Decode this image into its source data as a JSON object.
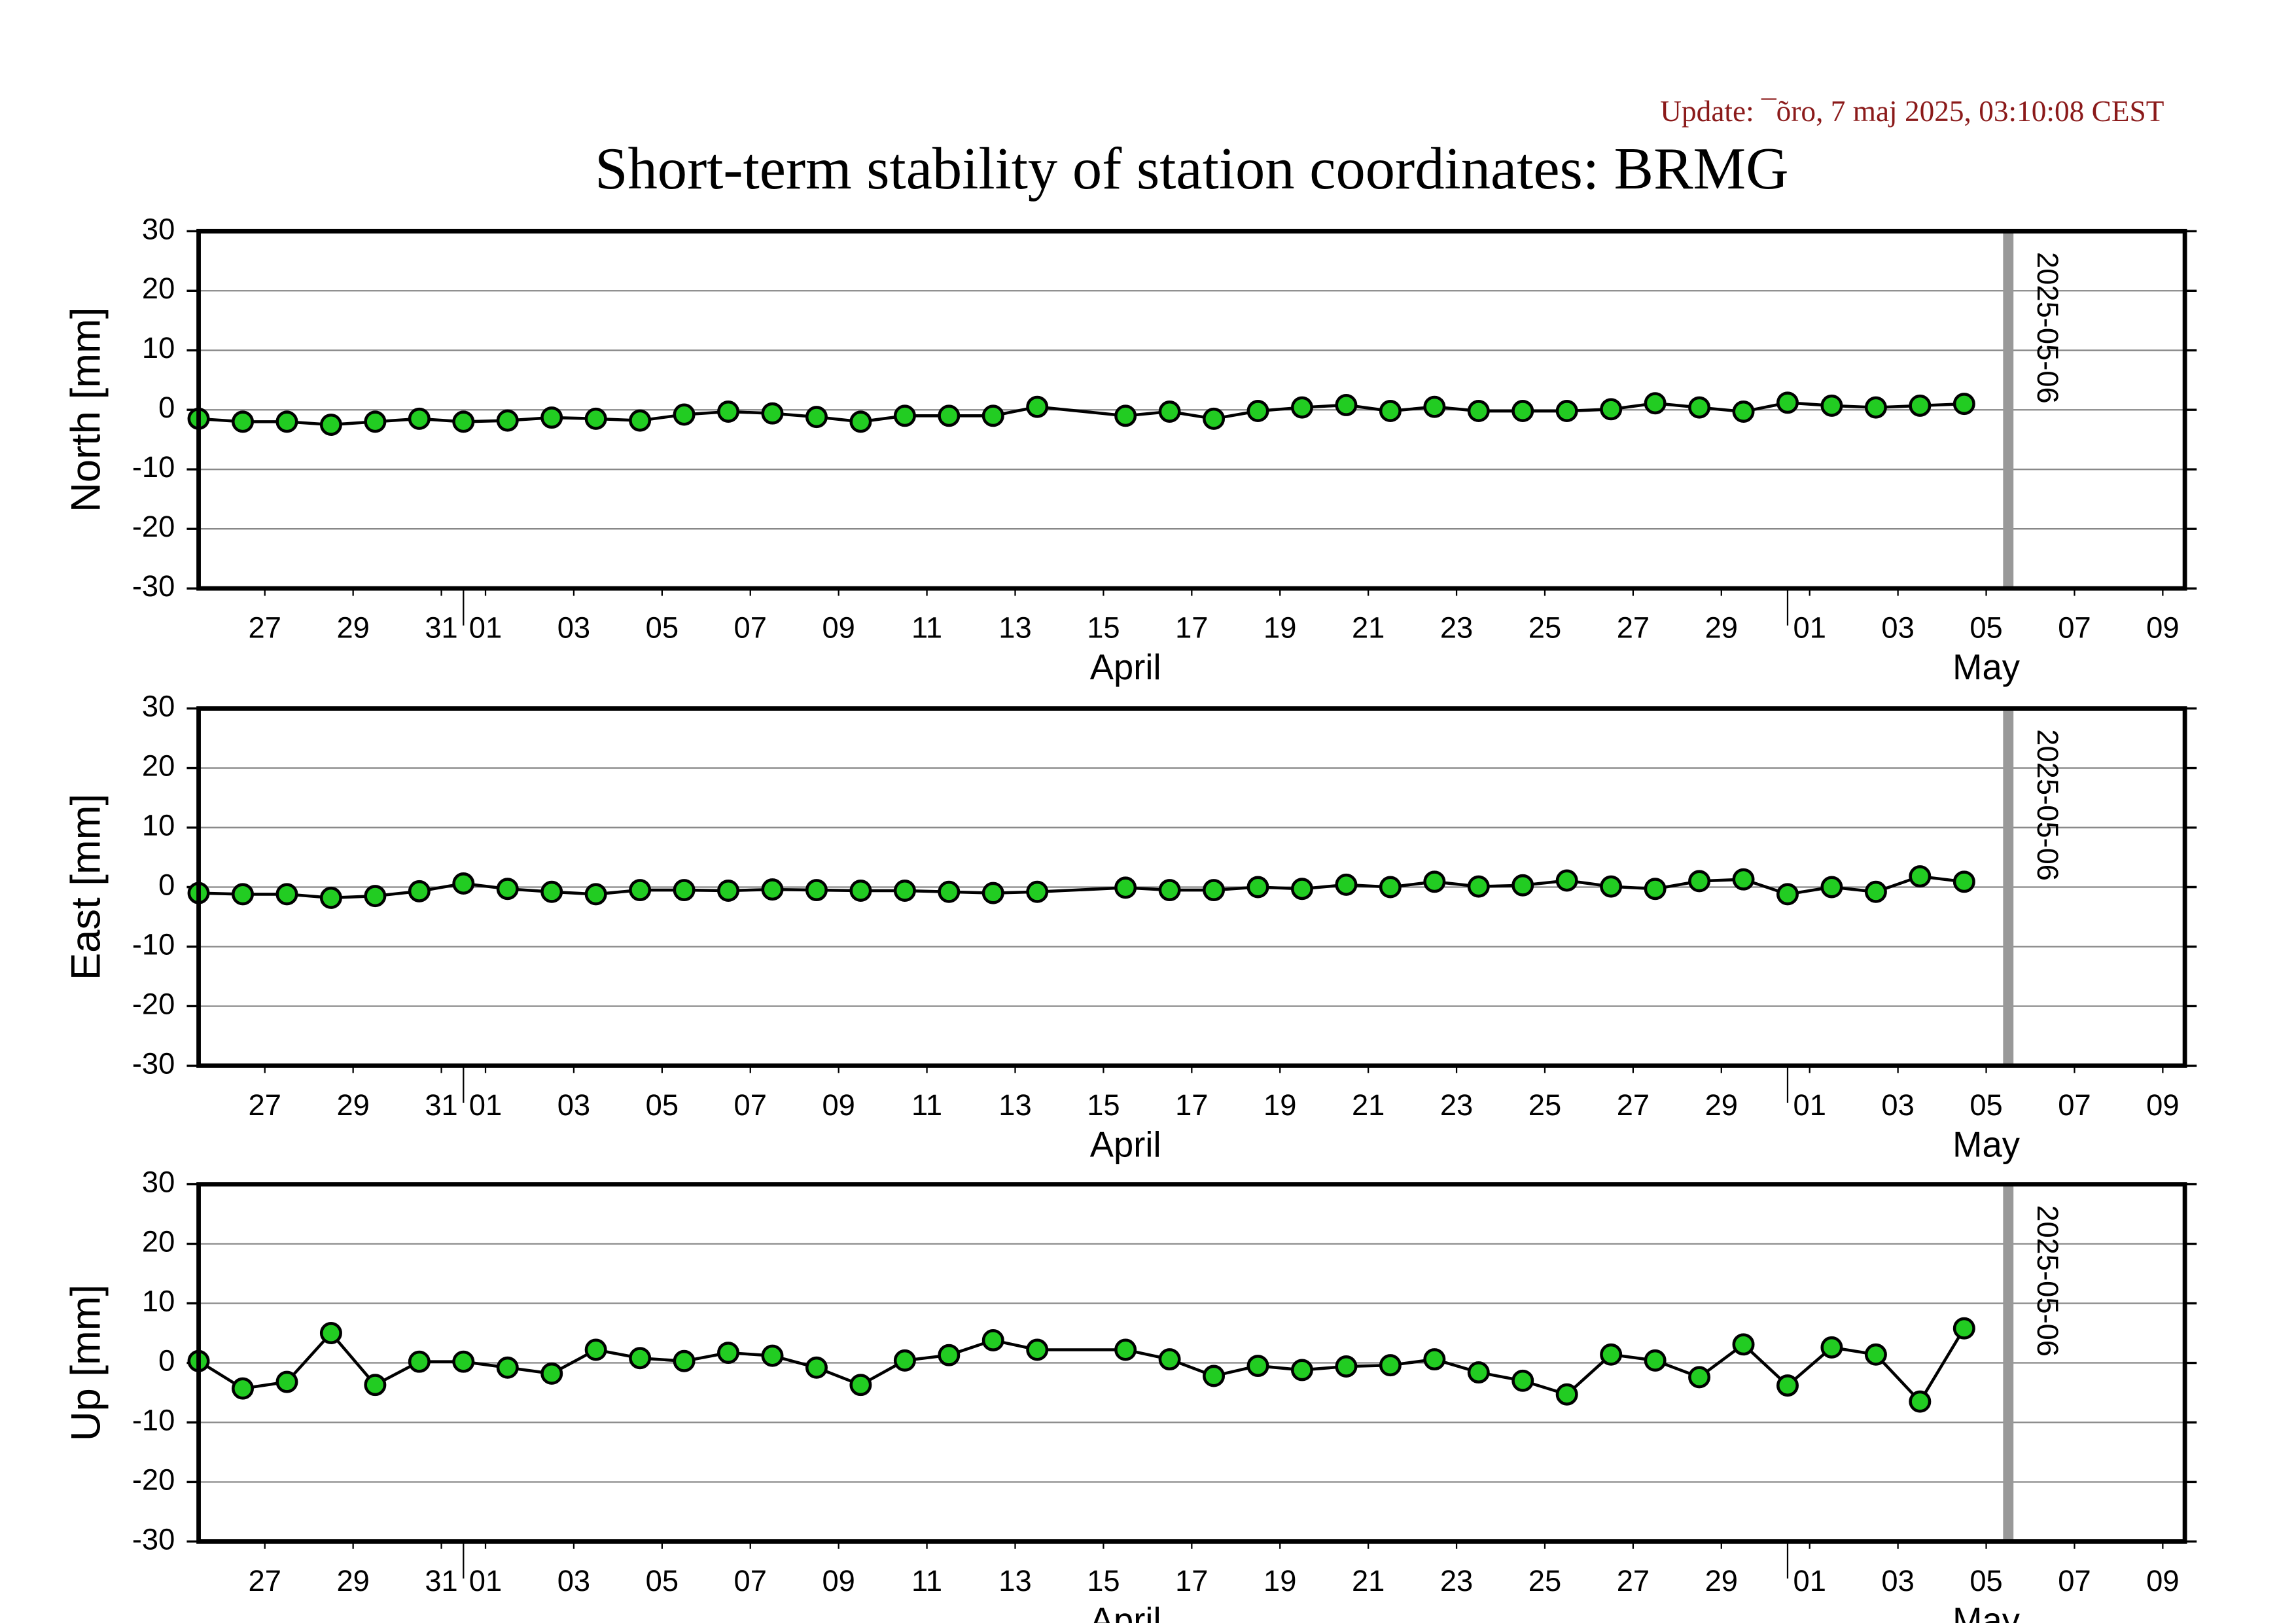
{
  "header": {
    "update": "Update: ¯õro, 7 maj 2025, 03:10:08 CEST",
    "title": "Short-term stability of station coordinates: BRMG"
  },
  "chart_data": [
    {
      "type": "line",
      "y_label": "North [mm]",
      "color": "#22cc22",
      "line_color": "#000000",
      "grid": true,
      "x": [
        "03-26",
        "03-27",
        "03-28",
        "03-29",
        "03-30",
        "03-31",
        "04-01",
        "04-02",
        "04-03",
        "04-04",
        "04-05",
        "04-06",
        "04-07",
        "04-08",
        "04-09",
        "04-10",
        "04-11",
        "04-12",
        "04-13",
        "04-14",
        "04-16",
        "04-17",
        "04-18",
        "04-19",
        "04-20",
        "04-21",
        "04-22",
        "04-23",
        "04-24",
        "04-25",
        "04-26",
        "04-27",
        "04-28",
        "04-29",
        "04-30",
        "05-01",
        "05-02",
        "05-03",
        "05-04",
        "05-05"
      ],
      "values": [
        -1.5,
        -2,
        -2,
        -2.5,
        -2,
        -1.5,
        -2,
        -1.8,
        -1.3,
        -1.5,
        -1.8,
        -0.8,
        -0.3,
        -0.6,
        -1.2,
        -2,
        -1,
        -1,
        -1,
        0.5,
        -1,
        -0.3,
        -1.5,
        -0.2,
        0.4,
        0.8,
        -0.2,
        0.5,
        -0.2,
        -0.2,
        -0.2,
        0.1,
        1.1,
        0.4,
        -0.3,
        1.2,
        0.7,
        0.4,
        0.7,
        1.0
      ],
      "xlim": [
        "03-26",
        "05-10"
      ],
      "xticks": [
        {
          "value": "03-27",
          "label": "27"
        },
        {
          "value": "03-29",
          "label": "29"
        },
        {
          "value": "03-31",
          "label": "31"
        },
        {
          "value": "04-01",
          "label": "01"
        },
        {
          "value": "04-03",
          "label": "03"
        },
        {
          "value": "04-05",
          "label": "05"
        },
        {
          "value": "04-07",
          "label": "07"
        },
        {
          "value": "04-09",
          "label": "09"
        },
        {
          "value": "04-11",
          "label": "11"
        },
        {
          "value": "04-13",
          "label": "13"
        },
        {
          "value": "04-15",
          "label": "15"
        },
        {
          "value": "04-17",
          "label": "17"
        },
        {
          "value": "04-19",
          "label": "19"
        },
        {
          "value": "04-21",
          "label": "21"
        },
        {
          "value": "04-23",
          "label": "23"
        },
        {
          "value": "04-25",
          "label": "25"
        },
        {
          "value": "04-27",
          "label": "27"
        },
        {
          "value": "04-29",
          "label": "29"
        },
        {
          "value": "05-01",
          "label": "01"
        },
        {
          "value": "05-03",
          "label": "03"
        },
        {
          "value": "05-05",
          "label": "05"
        },
        {
          "value": "05-07",
          "label": "07"
        },
        {
          "value": "05-09",
          "label": "09"
        }
      ],
      "months": [
        {
          "value": "04",
          "label": "April"
        },
        {
          "value": "05",
          "label": "May"
        }
      ],
      "marker": "2025-05-06",
      "ylim": [
        -30,
        30
      ],
      "yticks": [
        -30,
        -20,
        -10,
        0,
        10,
        20,
        30
      ]
    },
    {
      "type": "line",
      "y_label": "East [mm]",
      "color": "#22cc22",
      "line_color": "#000000",
      "grid": true,
      "x": [
        "03-26",
        "03-27",
        "03-28",
        "03-29",
        "03-30",
        "03-31",
        "04-01",
        "04-02",
        "04-03",
        "04-04",
        "04-05",
        "04-06",
        "04-07",
        "04-08",
        "04-09",
        "04-10",
        "04-11",
        "04-12",
        "04-13",
        "04-14",
        "04-16",
        "04-17",
        "04-18",
        "04-19",
        "04-20",
        "04-21",
        "04-22",
        "04-23",
        "04-24",
        "04-25",
        "04-26",
        "04-27",
        "04-28",
        "04-29",
        "04-30",
        "05-01",
        "05-02",
        "05-03",
        "05-04",
        "05-05"
      ],
      "values": [
        -1,
        -1.2,
        -1.2,
        -1.8,
        -1.5,
        -0.7,
        0.6,
        -0.3,
        -0.8,
        -1.2,
        -0.5,
        -0.5,
        -0.6,
        -0.4,
        -0.5,
        -0.6,
        -0.6,
        -0.8,
        -1,
        -0.8,
        -0.1,
        -0.5,
        -0.5,
        0,
        -0.3,
        0.4,
        0,
        0.9,
        0.1,
        0.3,
        1.1,
        0.1,
        -0.3,
        1,
        1.3,
        -1.2,
        0,
        -0.8,
        1.8,
        0.9
      ],
      "xlim": [
        "03-26",
        "05-10"
      ],
      "xticks": [
        {
          "value": "03-27",
          "label": "27"
        },
        {
          "value": "03-29",
          "label": "29"
        },
        {
          "value": "03-31",
          "label": "31"
        },
        {
          "value": "04-01",
          "label": "01"
        },
        {
          "value": "04-03",
          "label": "03"
        },
        {
          "value": "04-05",
          "label": "05"
        },
        {
          "value": "04-07",
          "label": "07"
        },
        {
          "value": "04-09",
          "label": "09"
        },
        {
          "value": "04-11",
          "label": "11"
        },
        {
          "value": "04-13",
          "label": "13"
        },
        {
          "value": "04-15",
          "label": "15"
        },
        {
          "value": "04-17",
          "label": "17"
        },
        {
          "value": "04-19",
          "label": "19"
        },
        {
          "value": "04-21",
          "label": "21"
        },
        {
          "value": "04-23",
          "label": "23"
        },
        {
          "value": "04-25",
          "label": "25"
        },
        {
          "value": "04-27",
          "label": "27"
        },
        {
          "value": "04-29",
          "label": "29"
        },
        {
          "value": "05-01",
          "label": "01"
        },
        {
          "value": "05-03",
          "label": "03"
        },
        {
          "value": "05-05",
          "label": "05"
        },
        {
          "value": "05-07",
          "label": "07"
        },
        {
          "value": "05-09",
          "label": "09"
        }
      ],
      "months": [
        {
          "value": "04",
          "label": "April"
        },
        {
          "value": "05",
          "label": "May"
        }
      ],
      "marker": "2025-05-06",
      "ylim": [
        -30,
        30
      ],
      "yticks": [
        -30,
        -20,
        -10,
        0,
        10,
        20,
        30
      ]
    },
    {
      "type": "line",
      "y_label": "Up [mm]",
      "color": "#22cc22",
      "line_color": "#000000",
      "grid": true,
      "x": [
        "03-26",
        "03-27",
        "03-28",
        "03-29",
        "03-30",
        "03-31",
        "04-01",
        "04-02",
        "04-03",
        "04-04",
        "04-05",
        "04-06",
        "04-07",
        "04-08",
        "04-09",
        "04-10",
        "04-11",
        "04-12",
        "04-13",
        "04-14",
        "04-16",
        "04-17",
        "04-18",
        "04-19",
        "04-20",
        "04-21",
        "04-22",
        "04-23",
        "04-24",
        "04-25",
        "04-26",
        "04-27",
        "04-28",
        "04-29",
        "04-30",
        "05-01",
        "05-02",
        "05-03",
        "05-04",
        "05-05"
      ],
      "values": [
        0.3,
        -4.3,
        -3.2,
        5,
        -3.7,
        0.2,
        0.2,
        -0.8,
        -1.8,
        2.2,
        0.8,
        0.3,
        1.7,
        1.2,
        -0.8,
        -3.7,
        0.4,
        1.3,
        3.8,
        2.2,
        2.2,
        0.6,
        -2.2,
        -0.5,
        -1.2,
        -0.6,
        -0.4,
        0.6,
        -1.6,
        -3,
        -5.3,
        1.4,
        0.4,
        -2.4,
        3.1,
        -3.8,
        2.6,
        1.4,
        -6.5,
        5.8
      ],
      "xlim": [
        "03-26",
        "05-10"
      ],
      "xticks": [
        {
          "value": "03-27",
          "label": "27"
        },
        {
          "value": "03-29",
          "label": "29"
        },
        {
          "value": "03-31",
          "label": "31"
        },
        {
          "value": "04-01",
          "label": "01"
        },
        {
          "value": "04-03",
          "label": "03"
        },
        {
          "value": "04-05",
          "label": "05"
        },
        {
          "value": "04-07",
          "label": "07"
        },
        {
          "value": "04-09",
          "label": "09"
        },
        {
          "value": "04-11",
          "label": "11"
        },
        {
          "value": "04-13",
          "label": "13"
        },
        {
          "value": "04-15",
          "label": "15"
        },
        {
          "value": "04-17",
          "label": "17"
        },
        {
          "value": "04-19",
          "label": "19"
        },
        {
          "value": "04-21",
          "label": "21"
        },
        {
          "value": "04-23",
          "label": "23"
        },
        {
          "value": "04-25",
          "label": "25"
        },
        {
          "value": "04-27",
          "label": "27"
        },
        {
          "value": "04-29",
          "label": "29"
        },
        {
          "value": "05-01",
          "label": "01"
        },
        {
          "value": "05-03",
          "label": "03"
        },
        {
          "value": "05-05",
          "label": "05"
        },
        {
          "value": "05-07",
          "label": "07"
        },
        {
          "value": "05-09",
          "label": "09"
        }
      ],
      "months": [
        {
          "value": "04",
          "label": "April"
        },
        {
          "value": "05",
          "label": "May"
        }
      ],
      "marker": "2025-05-06",
      "ylim": [
        -30,
        30
      ],
      "yticks": [
        -30,
        -20,
        -10,
        0,
        10,
        20,
        30
      ]
    }
  ]
}
